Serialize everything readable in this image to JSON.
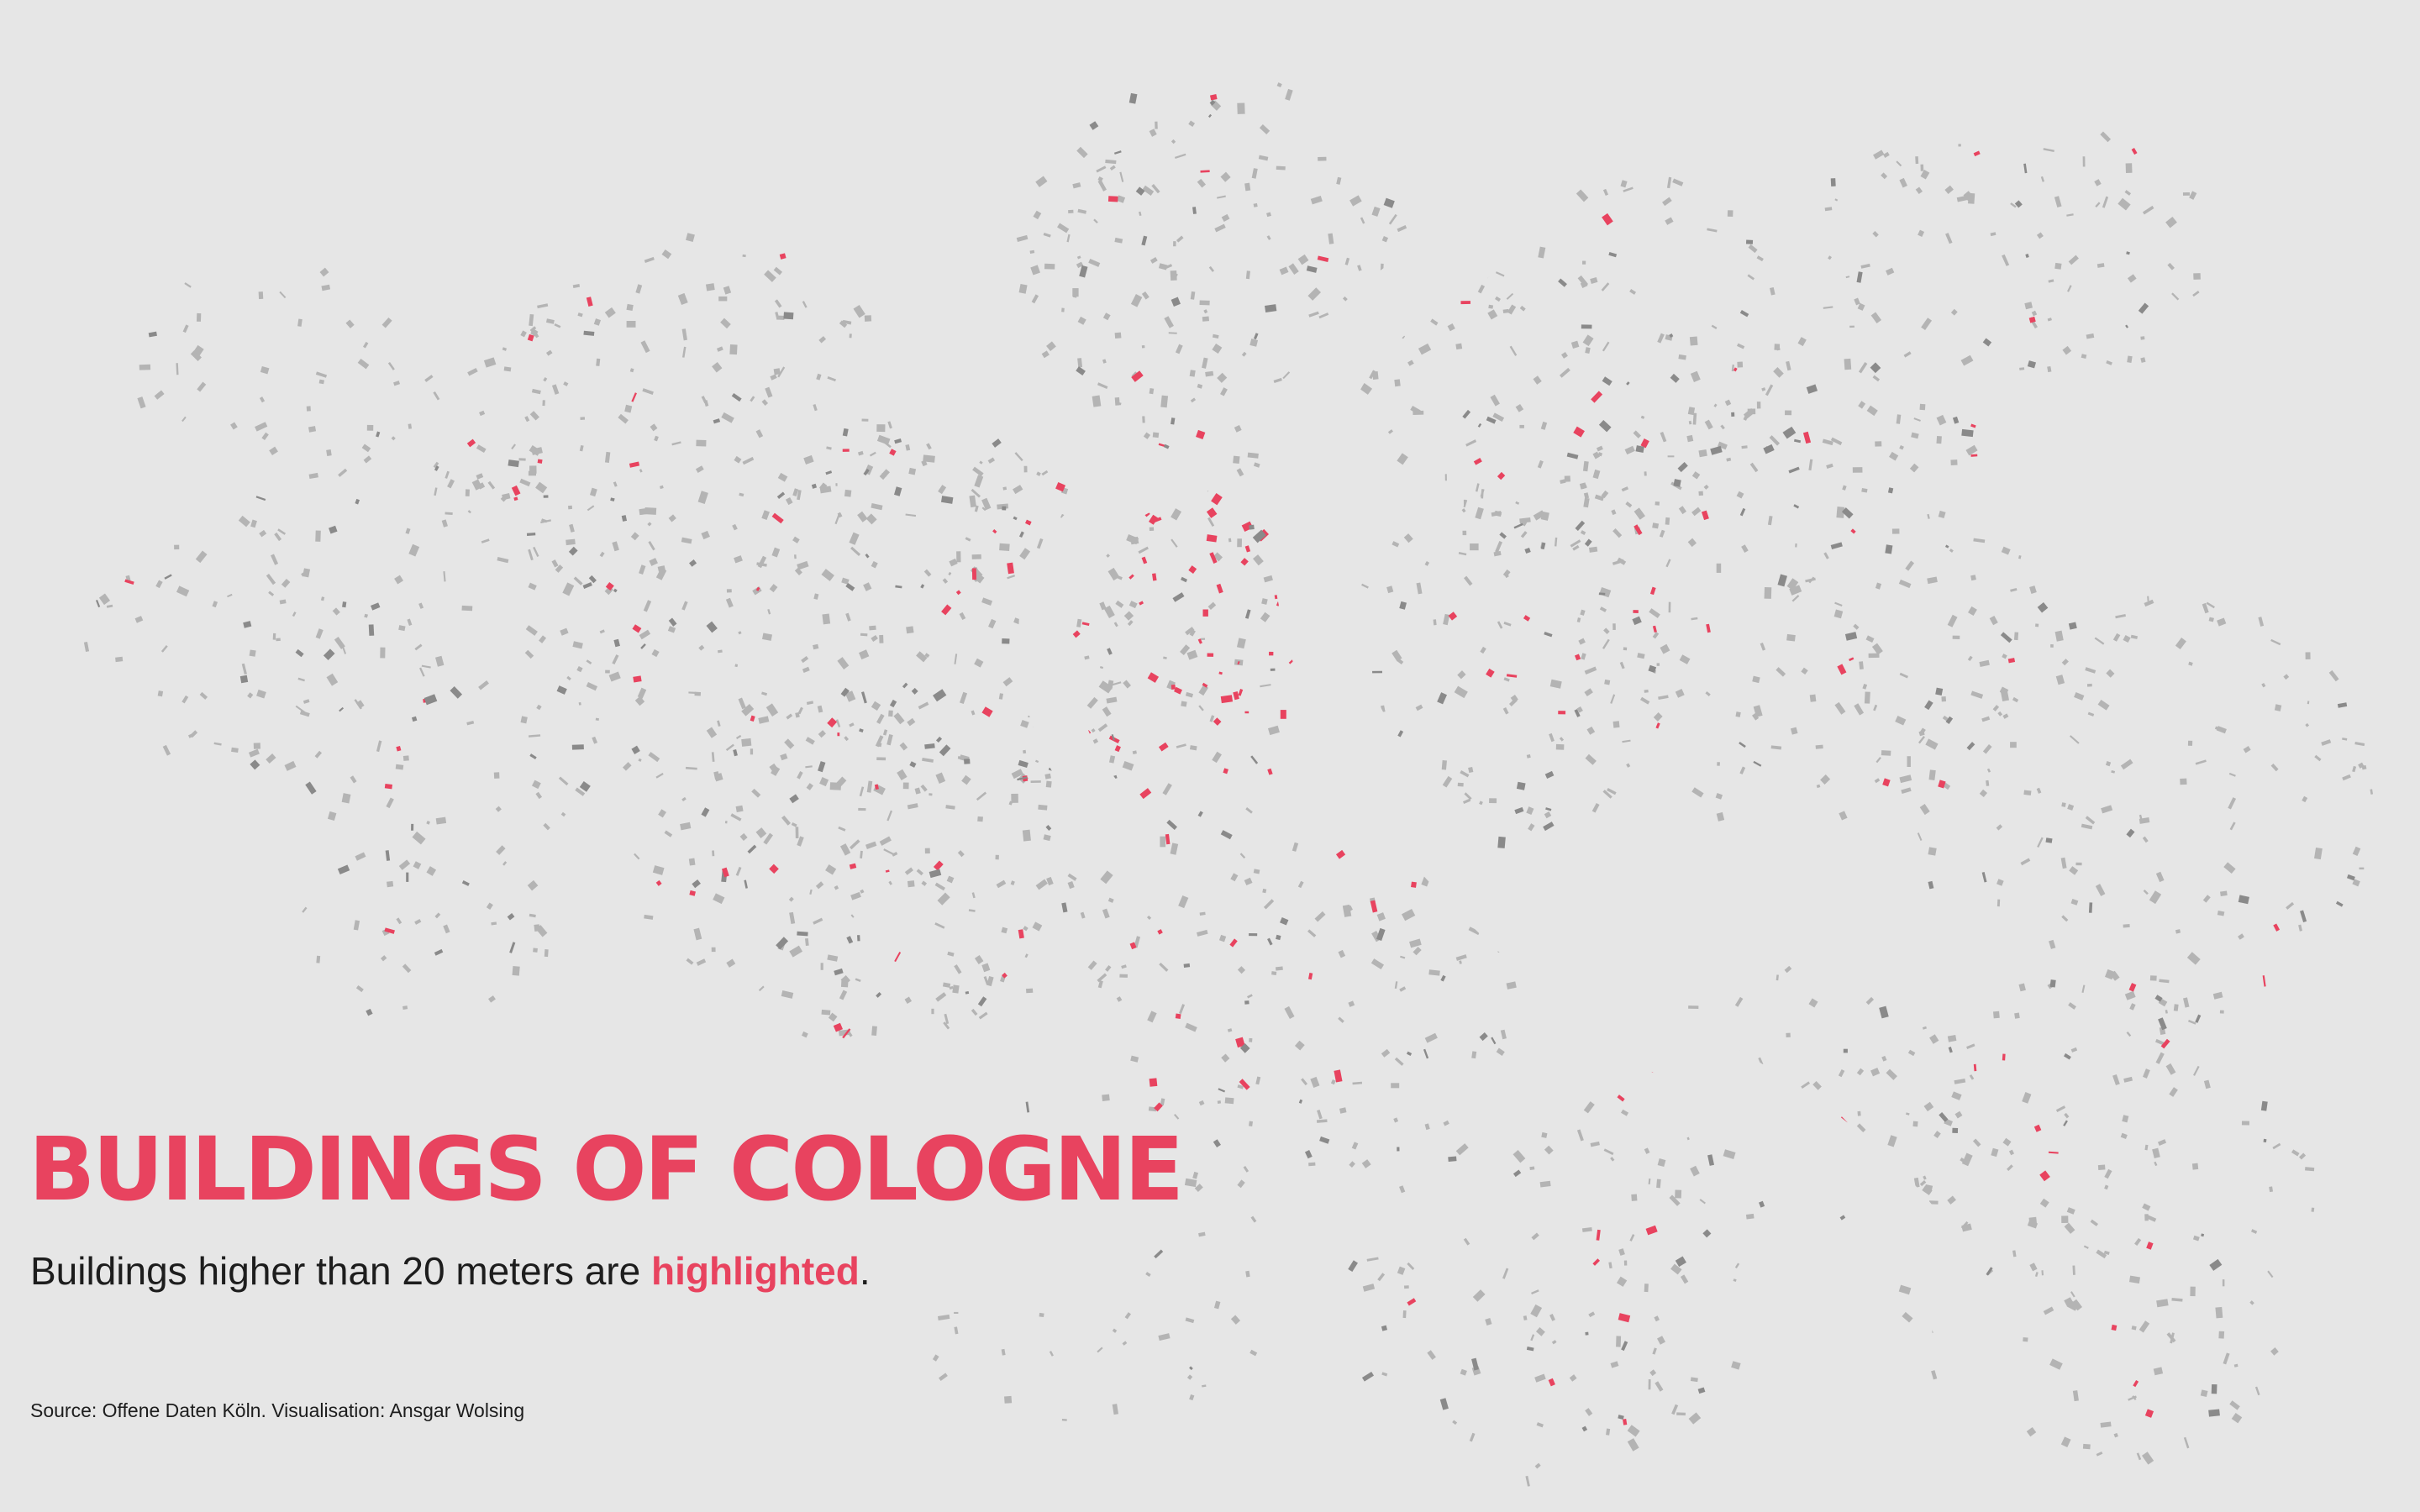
{
  "title": "BUILDINGS OF COLOGNE",
  "subtitle": {
    "before": "Buildings higher than 20 meters are ",
    "highlight": "highlighted",
    "after": "."
  },
  "source": "Source: Offene Daten Köln. Visualisation: Ansgar Wolsing",
  "colors": {
    "background": "#e6e6e6",
    "building": "#8a8a8a",
    "building_texture": "#b4b4b4",
    "building_high": "#e8435f",
    "river": "#e6e6e6",
    "text": "#1d1d1d"
  }
}
